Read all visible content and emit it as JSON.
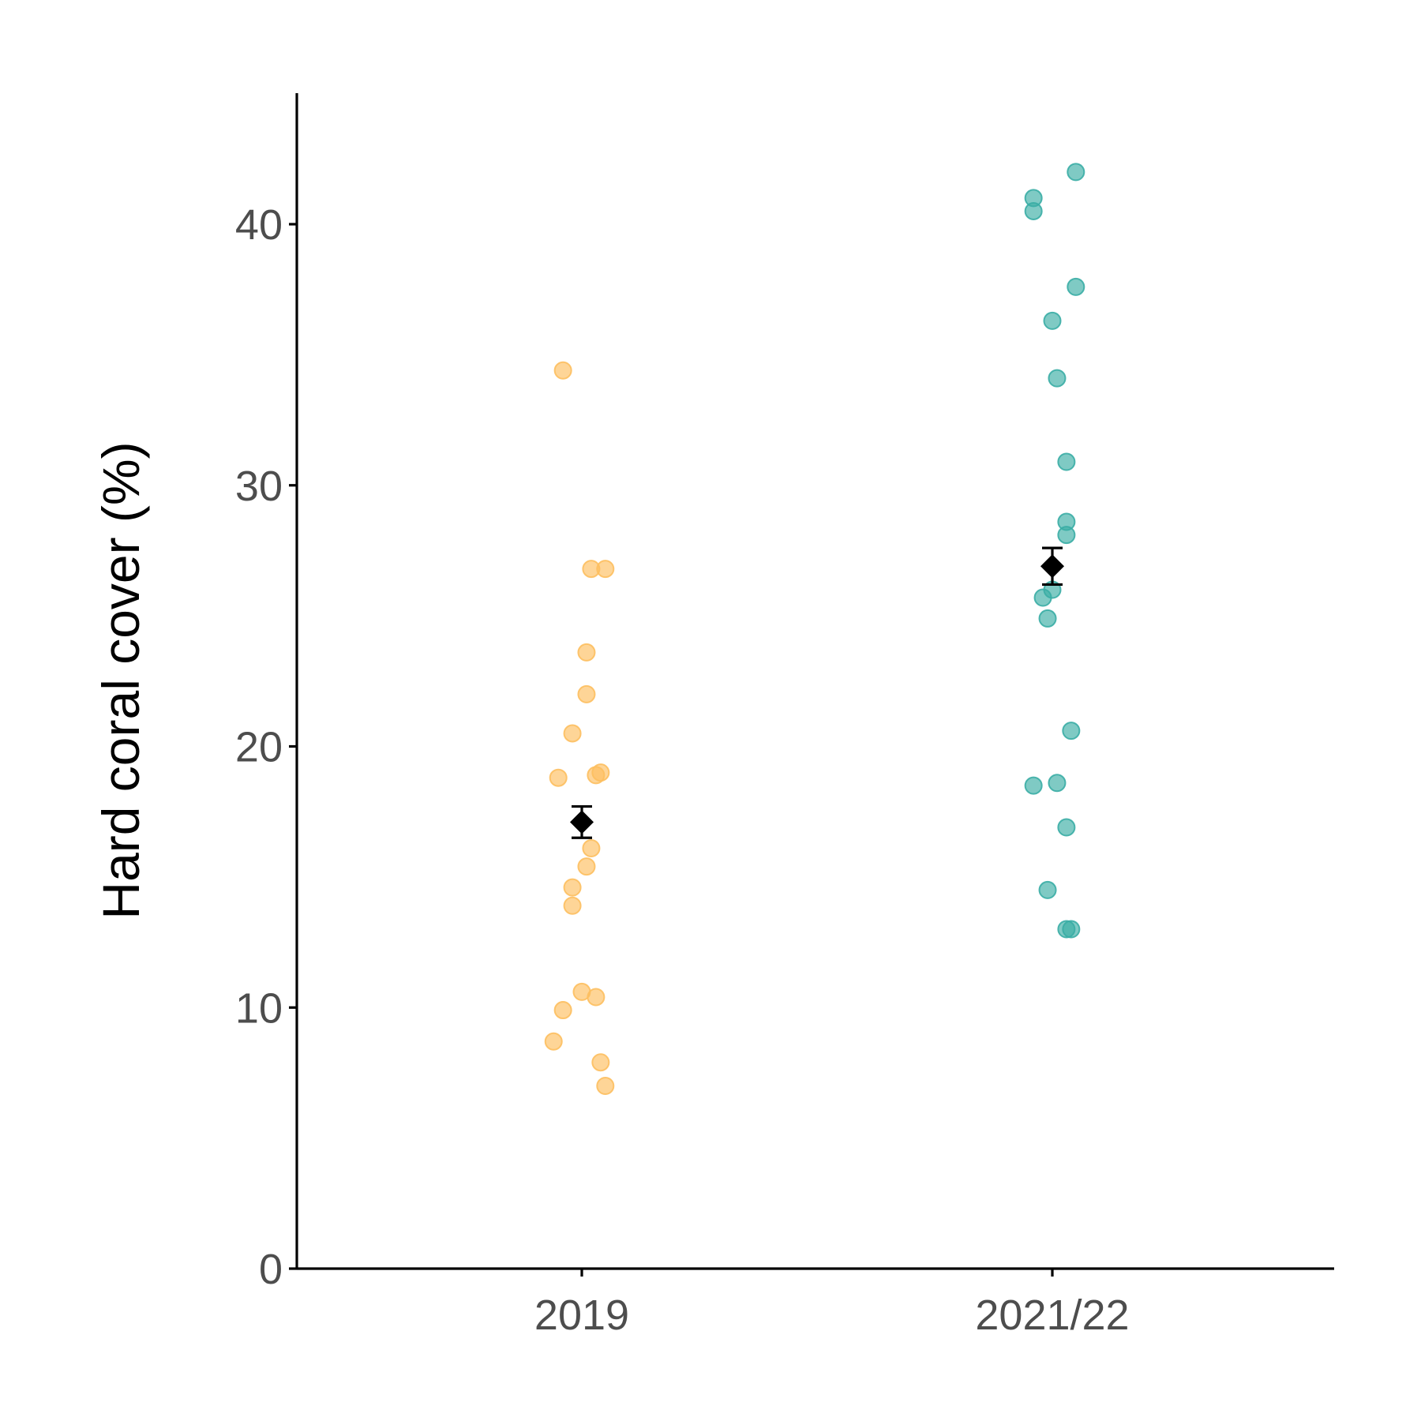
{
  "chart_data": {
    "type": "scatter",
    "title": "",
    "xlabel": "",
    "ylabel": "Hard coral cover (%)",
    "categories": [
      "2019",
      "2021/22"
    ],
    "ylim": [
      0,
      45
    ],
    "yticks": [
      0,
      10,
      20,
      30,
      40
    ],
    "grid": false,
    "legend": "none",
    "series": [
      {
        "category": "2019",
        "color": "#FDBF5F",
        "points": [
          {
            "jitter": -0.04,
            "y": 34.4
          },
          {
            "jitter": 0.02,
            "y": 26.8
          },
          {
            "jitter": 0.05,
            "y": 26.8
          },
          {
            "jitter": 0.01,
            "y": 23.6
          },
          {
            "jitter": 0.01,
            "y": 22.0
          },
          {
            "jitter": -0.02,
            "y": 20.5
          },
          {
            "jitter": -0.05,
            "y": 18.8
          },
          {
            "jitter": 0.03,
            "y": 18.9
          },
          {
            "jitter": 0.04,
            "y": 19.0
          },
          {
            "jitter": 0.02,
            "y": 16.1
          },
          {
            "jitter": 0.01,
            "y": 15.4
          },
          {
            "jitter": -0.02,
            "y": 14.6
          },
          {
            "jitter": -0.02,
            "y": 13.9
          },
          {
            "jitter": 0.0,
            "y": 10.6
          },
          {
            "jitter": 0.03,
            "y": 10.4
          },
          {
            "jitter": -0.04,
            "y": 9.9
          },
          {
            "jitter": -0.06,
            "y": 8.7
          },
          {
            "jitter": 0.04,
            "y": 7.9
          },
          {
            "jitter": 0.05,
            "y": 7.0
          }
        ],
        "mean": 17.1,
        "error": [
          16.5,
          17.7
        ]
      },
      {
        "category": "2021/22",
        "color": "#3AADA5",
        "points": [
          {
            "jitter": 0.05,
            "y": 42.0
          },
          {
            "jitter": -0.04,
            "y": 41.0
          },
          {
            "jitter": -0.04,
            "y": 40.5
          },
          {
            "jitter": 0.05,
            "y": 37.6
          },
          {
            "jitter": 0.0,
            "y": 36.3
          },
          {
            "jitter": 0.01,
            "y": 34.1
          },
          {
            "jitter": 0.03,
            "y": 30.9
          },
          {
            "jitter": 0.03,
            "y": 28.6
          },
          {
            "jitter": 0.03,
            "y": 28.1
          },
          {
            "jitter": 0.0,
            "y": 26.0
          },
          {
            "jitter": -0.02,
            "y": 25.7
          },
          {
            "jitter": -0.01,
            "y": 24.9
          },
          {
            "jitter": 0.04,
            "y": 20.6
          },
          {
            "jitter": -0.04,
            "y": 18.5
          },
          {
            "jitter": 0.01,
            "y": 18.6
          },
          {
            "jitter": 0.03,
            "y": 16.9
          },
          {
            "jitter": -0.01,
            "y": 14.5
          },
          {
            "jitter": 0.03,
            "y": 13.0
          },
          {
            "jitter": 0.04,
            "y": 13.0
          }
        ],
        "mean": 26.9,
        "error": [
          26.2,
          27.6
        ]
      }
    ]
  }
}
